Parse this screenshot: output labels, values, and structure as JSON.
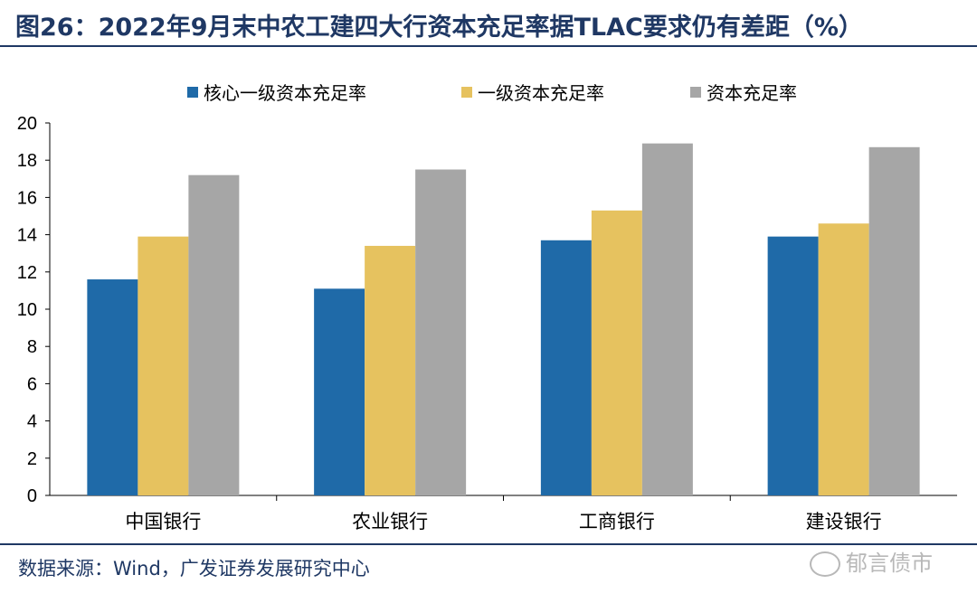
{
  "figure": {
    "title": "图26：2022年9月末中农工建四大行资本充足率据TLAC要求仍有差距（%）",
    "source": "数据来源：Wind，广发证券发展研究中心",
    "watermark": "郁言债市"
  },
  "colors": {
    "rule": "#1F3864",
    "series": [
      "#1F6AA8",
      "#E6C25F",
      "#A6A6A6"
    ],
    "axis": "#000000"
  },
  "chart_data": {
    "type": "bar",
    "categories": [
      "中国银行",
      "农业银行",
      "工商银行",
      "建设银行"
    ],
    "series": [
      {
        "name": "核心一级资本充足率",
        "values": [
          11.6,
          11.1,
          13.7,
          13.9
        ]
      },
      {
        "name": "一级资本充足率",
        "values": [
          13.9,
          13.4,
          15.3,
          14.6
        ]
      },
      {
        "name": "资本充足率",
        "values": [
          17.2,
          17.5,
          18.9,
          18.7
        ]
      }
    ],
    "ylim": [
      0,
      20
    ],
    "yticks": [
      0,
      2,
      4,
      6,
      8,
      10,
      12,
      14,
      16,
      18,
      20
    ],
    "legend_position": "top",
    "grid": false
  }
}
